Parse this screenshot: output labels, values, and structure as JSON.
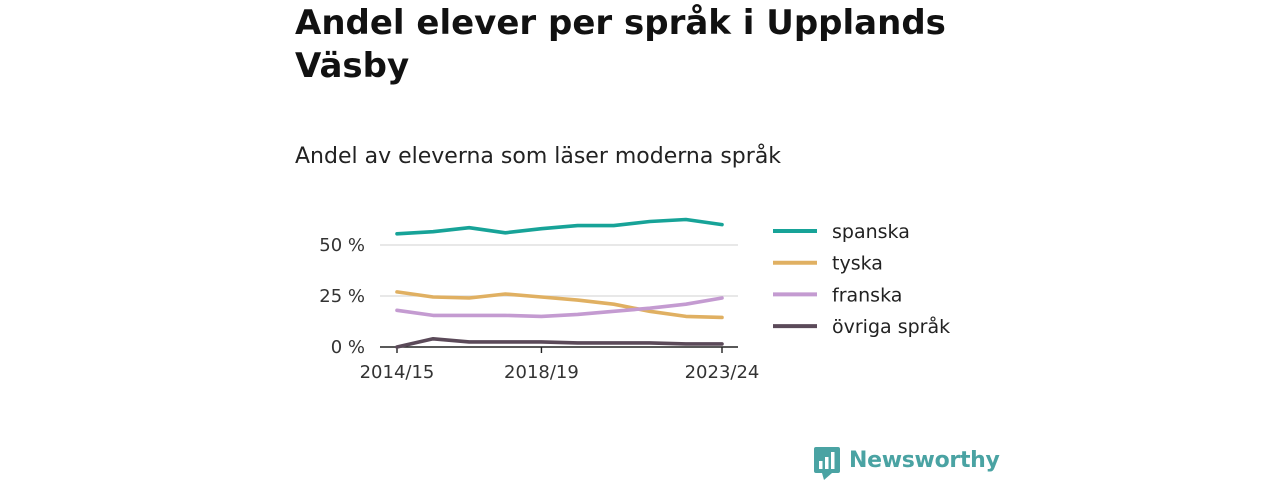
{
  "title": "Andel elever per språk i Upplands Väsby",
  "subtitle": "Andel av eleverna som läser moderna språk",
  "brand": {
    "name": "Newsworthy",
    "icon": "bar-chart-speech-bubble-icon",
    "color": "#4aa3a3"
  },
  "chart_data": {
    "type": "line",
    "title": "Andel elever per språk i Upplands Väsby",
    "subtitle": "Andel av eleverna som läser moderna språk",
    "x": [
      "2014/15",
      "2015/16",
      "2016/17",
      "2017/18",
      "2018/19",
      "2019/20",
      "2020/21",
      "2021/22",
      "2022/23",
      "2023/24"
    ],
    "x_tick_labels": [
      "2014/15",
      "2018/19",
      "2023/24"
    ],
    "ylim": [
      0,
      65
    ],
    "y_ticks": [
      0,
      25,
      50
    ],
    "y_tick_labels": [
      "0 %",
      "25 %",
      "50 %"
    ],
    "grid": true,
    "legend_position": "right",
    "series": [
      {
        "name": "spanska",
        "color": "#17a398",
        "values": [
          55.5,
          56.5,
          58.5,
          56,
          58,
          59.5,
          59.5,
          61.5,
          62.5,
          60
        ]
      },
      {
        "name": "tyska",
        "color": "#e0b062",
        "values": [
          27,
          24.5,
          24,
          26,
          24.5,
          23,
          21,
          17.5,
          15,
          14.5
        ]
      },
      {
        "name": "franska",
        "color": "#c49bd1",
        "values": [
          18,
          15.5,
          15.5,
          15.5,
          15,
          16,
          17.5,
          19,
          21,
          24
        ]
      },
      {
        "name": "övriga språk",
        "color": "#5b4a59",
        "values": [
          0,
          4,
          2.5,
          2.5,
          2.5,
          2,
          2,
          2,
          1.5,
          1.5
        ]
      }
    ]
  }
}
